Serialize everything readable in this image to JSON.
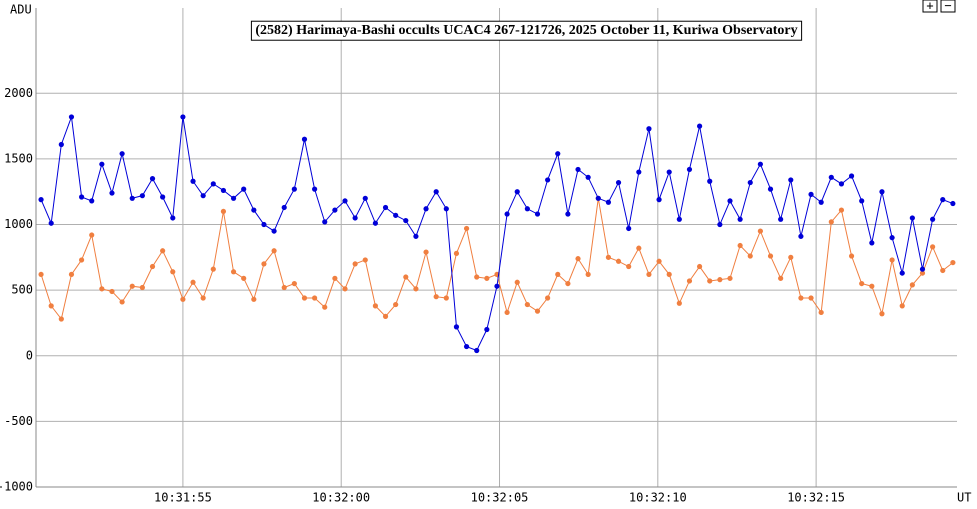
{
  "chart_data": {
    "type": "line",
    "title": "(2582) Harimaya-Bashi occults UCAC4 267-121726, 2025 October 11, Kuriwa Observatory",
    "y_label": "ADU",
    "x_label": "UT",
    "zoom_in": "+",
    "zoom_out": "−",
    "x": [
      50.52,
      50.84,
      51.16,
      51.48,
      51.8,
      52.12,
      52.44,
      52.76,
      53.08,
      53.4,
      53.72,
      54.04,
      54.36,
      54.68,
      55.0,
      55.32,
      55.64,
      55.96,
      56.28,
      56.6,
      56.92,
      57.24,
      57.56,
      57.88,
      58.2,
      58.52,
      58.84,
      59.16,
      59.48,
      59.8,
      60.12,
      60.44,
      60.76,
      61.08,
      61.4,
      61.72,
      62.04,
      62.36,
      62.68,
      63.0,
      63.32,
      63.64,
      63.96,
      64.28,
      64.6,
      64.92,
      65.24,
      65.56,
      65.88,
      66.2,
      66.52,
      66.84,
      67.16,
      67.48,
      67.8,
      68.12,
      68.44,
      68.76,
      69.08,
      69.4,
      69.72,
      70.04,
      70.36,
      70.68,
      71.0,
      71.32,
      71.64,
      71.96,
      72.28,
      72.6,
      72.92,
      73.24,
      73.56,
      73.88,
      74.2,
      74.52,
      74.84,
      75.16,
      75.48,
      75.8,
      76.12,
      76.44,
      76.76,
      77.08,
      77.4,
      77.72,
      78.04,
      78.36,
      78.68,
      79.0,
      79.32
    ],
    "series": [
      {
        "color": "#0000d8",
        "values": [
          1190,
          1010,
          1610,
          1820,
          1210,
          1180,
          1460,
          1240,
          1540,
          1200,
          1220,
          1350,
          1210,
          1050,
          1820,
          1330,
          1220,
          1310,
          1260,
          1200,
          1270,
          1110,
          1000,
          950,
          1130,
          1270,
          1650,
          1270,
          1020,
          1110,
          1180,
          1050,
          1200,
          1010,
          1130,
          1070,
          1030,
          910,
          1120,
          1250,
          1120,
          220,
          70,
          40,
          200,
          530,
          1080,
          1250,
          1120,
          1080,
          1340,
          1540,
          1080,
          1420,
          1360,
          1200,
          1170,
          1320,
          970,
          1400,
          1730,
          1190,
          1400,
          1040,
          1420,
          1750,
          1330,
          1000,
          1180,
          1040,
          1320,
          1460,
          1270,
          1040,
          1340,
          910,
          1230,
          1170,
          1360,
          1310,
          1370,
          1180,
          860,
          1250,
          900,
          630,
          1050,
          660,
          1040,
          1190,
          1160
        ]
      },
      {
        "color": "#f07f40",
        "values": [
          620,
          380,
          280,
          620,
          730,
          920,
          510,
          490,
          410,
          530,
          520,
          680,
          800,
          640,
          430,
          560,
          440,
          660,
          1100,
          640,
          590,
          430,
          700,
          800,
          520,
          550,
          440,
          440,
          370,
          590,
          510,
          700,
          730,
          380,
          300,
          390,
          600,
          510,
          790,
          450,
          440,
          780,
          970,
          600,
          590,
          620,
          330,
          560,
          390,
          340,
          440,
          620,
          550,
          740,
          620,
          1200,
          750,
          720,
          680,
          820,
          620,
          720,
          620,
          400,
          570,
          680,
          570,
          580,
          590,
          840,
          760,
          950,
          760,
          590,
          750,
          440,
          440,
          330,
          1020,
          1110,
          760,
          550,
          530,
          320,
          730,
          380,
          540,
          630,
          830,
          650,
          710
        ]
      }
    ],
    "xlim": [
      50.36,
      79.45
    ],
    "xticks": [
      {
        "value": 55,
        "label": "10:31:55"
      },
      {
        "value": 60,
        "label": "10:32:00"
      },
      {
        "value": 65,
        "label": "10:32:05"
      },
      {
        "value": 70,
        "label": "10:32:10"
      },
      {
        "value": 75,
        "label": "10:32:15"
      }
    ],
    "ylim": [
      -1000,
      2650
    ],
    "yticks": [
      -1000,
      -500,
      0,
      500,
      1000,
      1500,
      2000
    ],
    "grid": true
  }
}
